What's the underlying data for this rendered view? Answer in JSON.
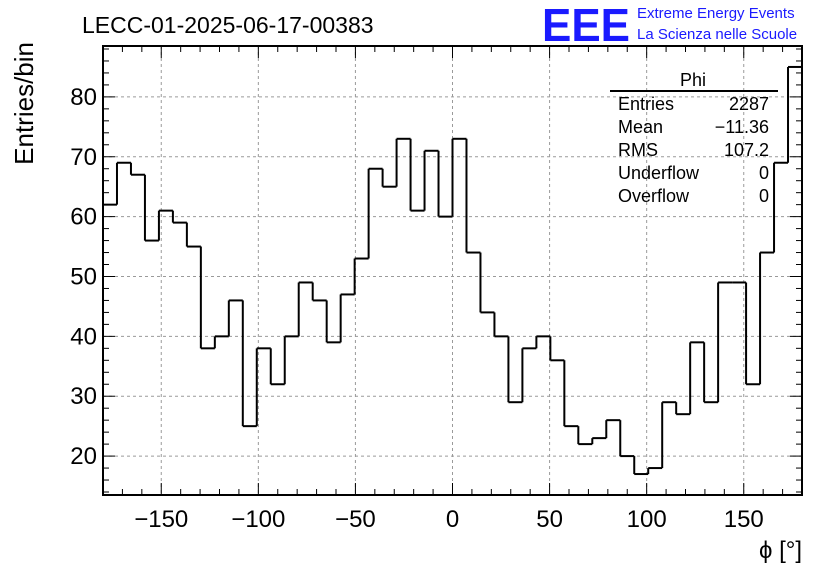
{
  "chart_data": {
    "type": "histogram",
    "title": "LECC-01-2025-06-17-00383",
    "xlabel": "ϕ [°]",
    "ylabel": "Entries/bin",
    "xlim": [
      -180,
      180
    ],
    "ylim": [
      13.5,
      88.5
    ],
    "grid": true,
    "bin_width": 7.2,
    "x_ticks": [
      -150,
      -100,
      -50,
      0,
      50,
      100,
      150
    ],
    "x_tick_labels": [
      "−150",
      "−100",
      "−50",
      "0",
      "50",
      "100",
      "150"
    ],
    "y_ticks": [
      20,
      30,
      40,
      50,
      60,
      70,
      80
    ],
    "y_tick_labels": [
      "20",
      "30",
      "40",
      "50",
      "60",
      "70",
      "80"
    ],
    "counts": [
      62,
      69,
      67,
      56,
      61,
      59,
      55,
      38,
      40,
      46,
      25,
      38,
      32,
      40,
      49,
      46,
      39,
      47,
      53,
      68,
      65,
      73,
      61,
      71,
      60,
      73,
      54,
      44,
      40,
      29,
      38,
      40,
      36,
      25,
      22,
      23,
      26,
      20,
      17,
      18,
      29,
      27,
      39,
      29,
      49,
      49,
      32,
      54,
      69,
      85
    ],
    "line_color": "#000000"
  },
  "stats_box": {
    "name": "Phi",
    "rows": [
      {
        "label": "Entries",
        "value": "2287"
      },
      {
        "label": "Mean",
        "value": "−11.36"
      },
      {
        "label": "RMS",
        "value": "107.2"
      },
      {
        "label": "Underflow",
        "value": "0"
      },
      {
        "label": "Overflow",
        "value": "0"
      }
    ]
  },
  "logo": {
    "text": "EEE",
    "line1": "Extreme Energy Events",
    "line2": "La Scienza nelle Scuole",
    "color": "#1a1aff"
  }
}
